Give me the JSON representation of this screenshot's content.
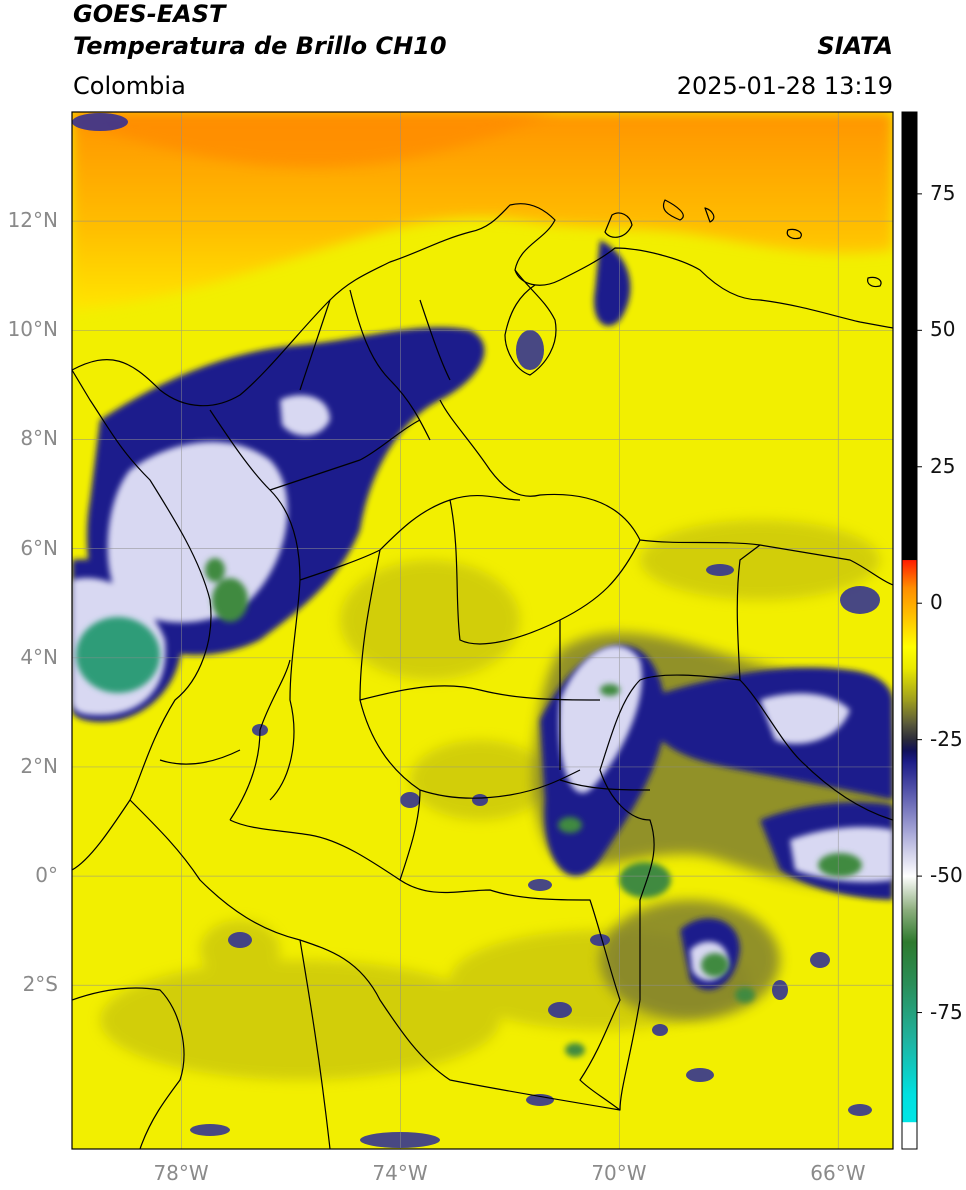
{
  "header": {
    "line1": "GOES-EAST",
    "line2": "Temperatura de Brillo CH10",
    "brand": "SIATA",
    "region": "Colombia",
    "datetime": "2025-01-28 13:19"
  },
  "map": {
    "extent": {
      "lon": [
        -80,
        -65
      ],
      "lat": [
        -5,
        14
      ]
    },
    "lat_ticks": [
      {
        "value": 12,
        "label": "12°N"
      },
      {
        "value": 10,
        "label": "10°N"
      },
      {
        "value": 8,
        "label": "8°N"
      },
      {
        "value": 6,
        "label": "6°N"
      },
      {
        "value": 4,
        "label": "4°N"
      },
      {
        "value": 2,
        "label": "2°N"
      },
      {
        "value": 0,
        "label": "0°"
      },
      {
        "value": -2,
        "label": "2°S"
      }
    ],
    "lon_ticks": [
      {
        "value": -78,
        "label": "78°W"
      },
      {
        "value": -74,
        "label": "74°W"
      },
      {
        "value": -70,
        "label": "70°W"
      },
      {
        "value": -66,
        "label": "66°W"
      }
    ],
    "gridlines": true
  },
  "colorbar": {
    "range": [
      -100,
      90
    ],
    "ticks": [
      {
        "value": 75,
        "label": "75"
      },
      {
        "value": 50,
        "label": "50"
      },
      {
        "value": 25,
        "label": "25"
      },
      {
        "value": 0,
        "label": "0"
      },
      {
        "value": -25,
        "label": "-25"
      },
      {
        "value": -50,
        "label": "-50"
      },
      {
        "value": -75,
        "label": "-75"
      }
    ],
    "stops": [
      {
        "value": -100,
        "color": "#ffffff"
      },
      {
        "value": -95,
        "color": "#ffffff"
      },
      {
        "value": -95,
        "color": "#00e5e5"
      },
      {
        "value": -90,
        "color": "#00e0e0"
      },
      {
        "value": -80,
        "color": "#20b3a0"
      },
      {
        "value": -70,
        "color": "#2a8f5a"
      },
      {
        "value": -62,
        "color": "#2e7a2e"
      },
      {
        "value": -56,
        "color": "#8fb080"
      },
      {
        "value": -50,
        "color": "#ffffff"
      },
      {
        "value": -42,
        "color": "#a8a8d8"
      },
      {
        "value": -34,
        "color": "#5050a8"
      },
      {
        "value": -29,
        "color": "#1c1c88"
      },
      {
        "value": -27,
        "color": "#10105a"
      },
      {
        "value": -25,
        "color": "#2a2a3a"
      },
      {
        "value": -22,
        "color": "#5a5a3a"
      },
      {
        "value": -18,
        "color": "#9a9a20"
      },
      {
        "value": -12,
        "color": "#e8e800"
      },
      {
        "value": -8,
        "color": "#ffff00"
      },
      {
        "value": -3,
        "color": "#ffc800"
      },
      {
        "value": 3,
        "color": "#ff8c00"
      },
      {
        "value": 8,
        "color": "#ff1a00"
      },
      {
        "value": 8,
        "color": "#000000"
      },
      {
        "value": 90,
        "color": "#000000"
      }
    ]
  }
}
